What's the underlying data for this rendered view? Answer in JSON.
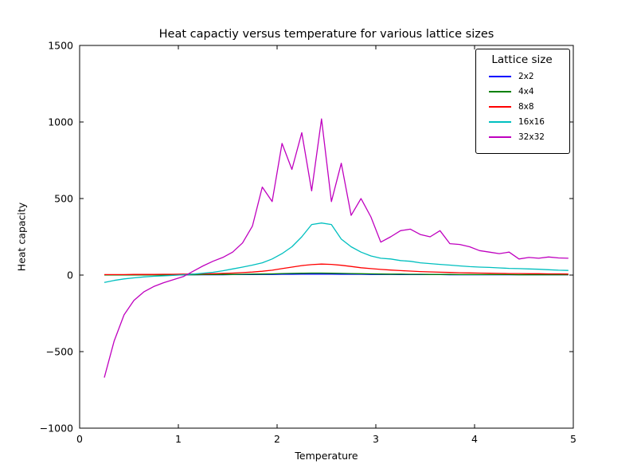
{
  "chart_data": {
    "type": "line",
    "title": "Heat capactiy versus temperature for various lattice sizes",
    "xlabel": "Temperature",
    "ylabel": "Heat capacity",
    "xlim": [
      0,
      5
    ],
    "ylim": [
      -1000,
      1500
    ],
    "x_ticks": [
      0,
      1,
      2,
      3,
      4,
      5
    ],
    "y_ticks": [
      -1000,
      -500,
      0,
      500,
      1000,
      1500
    ],
    "grid": false,
    "legend_title": "Lattice size",
    "legend_position": "upper right",
    "x": [
      0.25,
      0.35,
      0.45,
      0.55,
      0.65,
      0.75,
      0.85,
      0.95,
      1.05,
      1.15,
      1.25,
      1.35,
      1.45,
      1.55,
      1.65,
      1.75,
      1.85,
      1.95,
      2.05,
      2.15,
      2.25,
      2.35,
      2.45,
      2.55,
      2.65,
      2.75,
      2.85,
      2.95,
      3.05,
      3.15,
      3.25,
      3.35,
      3.45,
      3.55,
      3.65,
      3.75,
      3.85,
      3.95,
      4.05,
      4.15,
      4.25,
      4.35,
      4.45,
      4.55,
      4.65,
      4.75,
      4.85,
      4.95
    ],
    "series": [
      {
        "name": "2x2",
        "color": "#0000ff",
        "values": [
          1,
          1,
          1,
          1,
          1,
          1,
          1,
          1,
          2,
          2,
          2,
          2,
          2,
          3,
          3,
          3,
          4,
          4,
          5,
          5,
          6,
          6,
          6,
          6,
          5,
          5,
          5,
          4,
          4,
          4,
          3,
          3,
          3,
          3,
          3,
          2,
          2,
          2,
          2,
          2,
          2,
          2,
          2,
          2,
          2,
          2,
          2,
          2
        ]
      },
      {
        "name": "4x4",
        "color": "#008000",
        "values": [
          1,
          1,
          1,
          1,
          1,
          1,
          1,
          2,
          2,
          2,
          3,
          3,
          4,
          4,
          5,
          6,
          7,
          8,
          10,
          11,
          12,
          13,
          13,
          12,
          11,
          10,
          9,
          8,
          7,
          6,
          6,
          5,
          5,
          4,
          4,
          4,
          3,
          3,
          3,
          3,
          3,
          3,
          2,
          2,
          2,
          2,
          2,
          2
        ]
      },
      {
        "name": "8x8",
        "color": "#ff0000",
        "values": [
          3,
          3,
          3,
          4,
          4,
          4,
          5,
          5,
          6,
          7,
          8,
          9,
          11,
          13,
          16,
          20,
          25,
          32,
          42,
          52,
          62,
          68,
          72,
          70,
          64,
          56,
          48,
          42,
          37,
          33,
          29,
          26,
          23,
          21,
          19,
          17,
          15,
          14,
          13,
          12,
          11,
          10,
          10,
          9,
          9,
          8,
          8,
          7
        ]
      },
      {
        "name": "16x16",
        "color": "#00bfbf",
        "values": [
          -48,
          -35,
          -25,
          -18,
          -12,
          -8,
          -5,
          -2,
          2,
          6,
          12,
          18,
          28,
          40,
          52,
          65,
          80,
          105,
          140,
          185,
          250,
          330,
          340,
          330,
          235,
          185,
          150,
          125,
          110,
          105,
          95,
          90,
          80,
          75,
          70,
          65,
          60,
          55,
          52,
          50,
          47,
          44,
          42,
          40,
          38,
          35,
          32,
          30
        ]
      },
      {
        "name": "32x32",
        "color": "#bf00bf",
        "values": [
          -670,
          -430,
          -260,
          -165,
          -110,
          -75,
          -50,
          -30,
          -10,
          25,
          60,
          90,
          115,
          150,
          210,
          320,
          575,
          480,
          860,
          690,
          930,
          550,
          1020,
          480,
          730,
          390,
          500,
          380,
          215,
          250,
          290,
          300,
          265,
          250,
          290,
          205,
          200,
          185,
          160,
          150,
          140,
          150,
          105,
          115,
          110,
          118,
          112,
          110
        ]
      }
    ]
  }
}
